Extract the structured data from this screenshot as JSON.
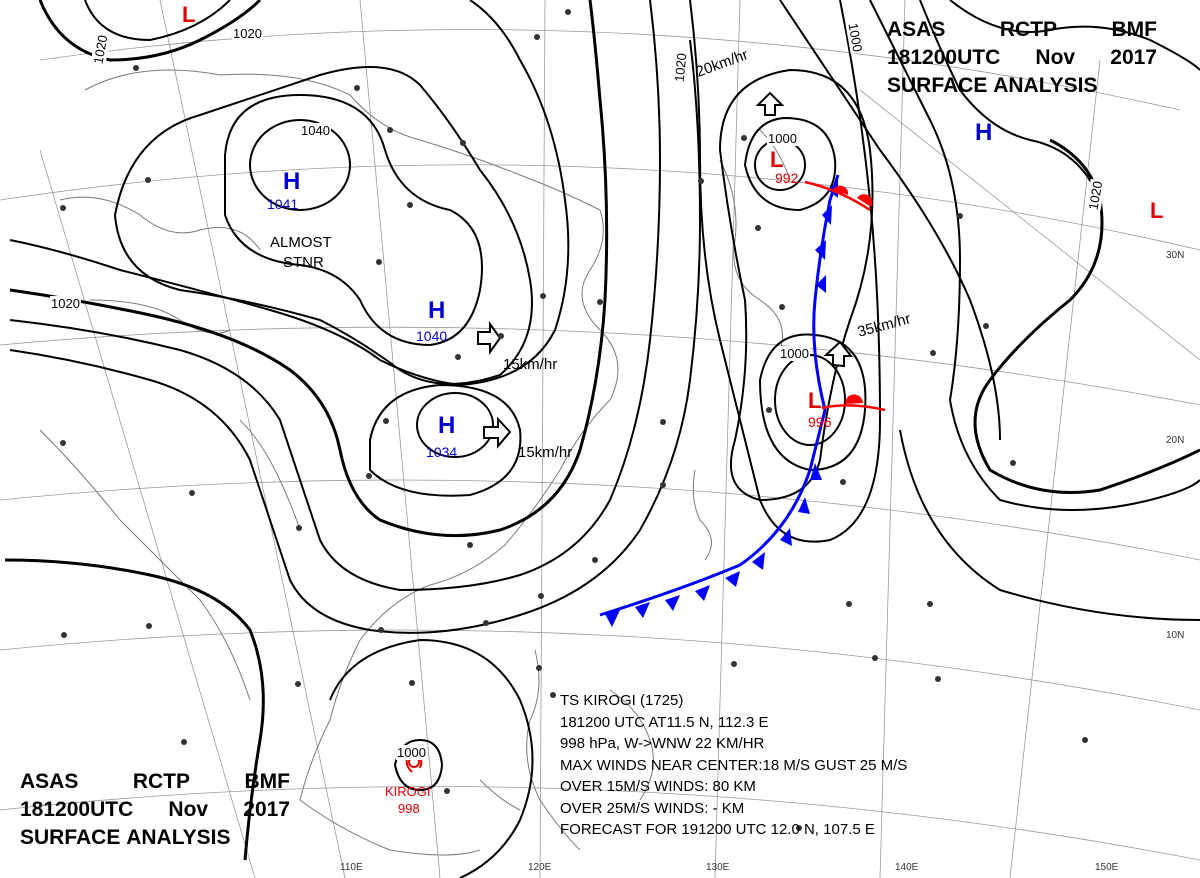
{
  "header": {
    "line1": [
      "ASAS",
      "RCTP",
      "BMF"
    ],
    "line2": [
      "181200UTC",
      "Nov",
      "2017"
    ],
    "line3": [
      "SURFACE",
      "ANALYSIS"
    ]
  },
  "pressure_systems": [
    {
      "type": "H",
      "value": "1041",
      "color": "#0000d0"
    },
    {
      "type": "H",
      "value": "1040",
      "color": "#0000d0"
    },
    {
      "type": "H",
      "value": "1034",
      "color": "#0000d0"
    },
    {
      "type": "H",
      "value": "",
      "color": "#0000d0"
    },
    {
      "type": "L",
      "value": "992",
      "color": "#e00000"
    },
    {
      "type": "L",
      "value": "996",
      "color": "#e00000"
    },
    {
      "type": "L",
      "value": "",
      "color": "#e00000"
    },
    {
      "type": "L",
      "value": "",
      "color": "#e00000"
    }
  ],
  "tropical_storm": {
    "name": "KIROGI",
    "pressure": "998",
    "isobar": "1000"
  },
  "isobar_labels": [
    "1020",
    "1020",
    "1020",
    "1020",
    "1020",
    "1040",
    "1000",
    "1000",
    "1000"
  ],
  "motion_vectors": [
    "20km/hr",
    "35km/hr",
    "15km/hr",
    "15km/hr"
  ],
  "notes": {
    "almost": "ALMOST",
    "stnr": "STNR"
  },
  "latitude_labels": [
    "30N",
    "20N",
    "10N"
  ],
  "longitude_labels": [
    "110E",
    "120E",
    "130E",
    "140E",
    "150E"
  ],
  "typhoon_info": [
    "TS  KIROGI  (1725)",
    "181200 UTC  AT11.5 N, 112.3 E",
    "998 hPa, W->WNW  22 KM/HR",
    "MAX WINDS NEAR CENTER:18 M/S GUST 25 M/S",
    "OVER 15M/S WINDS: 80 KM",
    "OVER 25M/S WINDS: - KM",
    "FORECAST FOR 191200 UTC  12.0 N, 107.5 E"
  ],
  "colors": {
    "high": "#0000d0",
    "low": "#e00000",
    "cold_front": "#0000ff",
    "warm_front": "#ff0000",
    "isobar": "#000000",
    "coast": "#888888"
  }
}
